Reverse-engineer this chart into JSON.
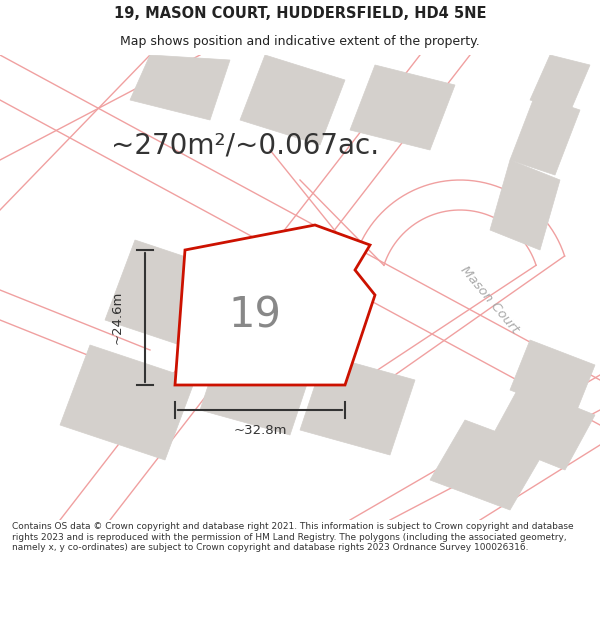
{
  "title": "19, MASON COURT, HUDDERSFIELD, HD4 5NE",
  "subtitle": "Map shows position and indicative extent of the property.",
  "area_text": "~270m²/~0.067ac.",
  "plot_number": "19",
  "dim_width": "~32.8m",
  "dim_height": "~24.6m",
  "road_label": "Mason Court",
  "footer": "Contains OS data © Crown copyright and database right 2021. This information is subject to Crown copyright and database rights 2023 and is reproduced with the permission of HM Land Registry. The polygons (including the associated geometry, namely x, y co-ordinates) are subject to Crown copyright and database rights 2023 Ordnance Survey 100026316.",
  "bg_color": "#ffffff",
  "map_bg": "#ffffff",
  "plot_fill": "#ffffff",
  "plot_edge": "#cc1100",
  "neighbor_fill": "#d4d0cc",
  "neighbor_edge": "#d4d0cc",
  "road_line_color": "#f0a0a0",
  "title_color": "#222222",
  "footer_color": "#333333",
  "area_color": "#333333"
}
